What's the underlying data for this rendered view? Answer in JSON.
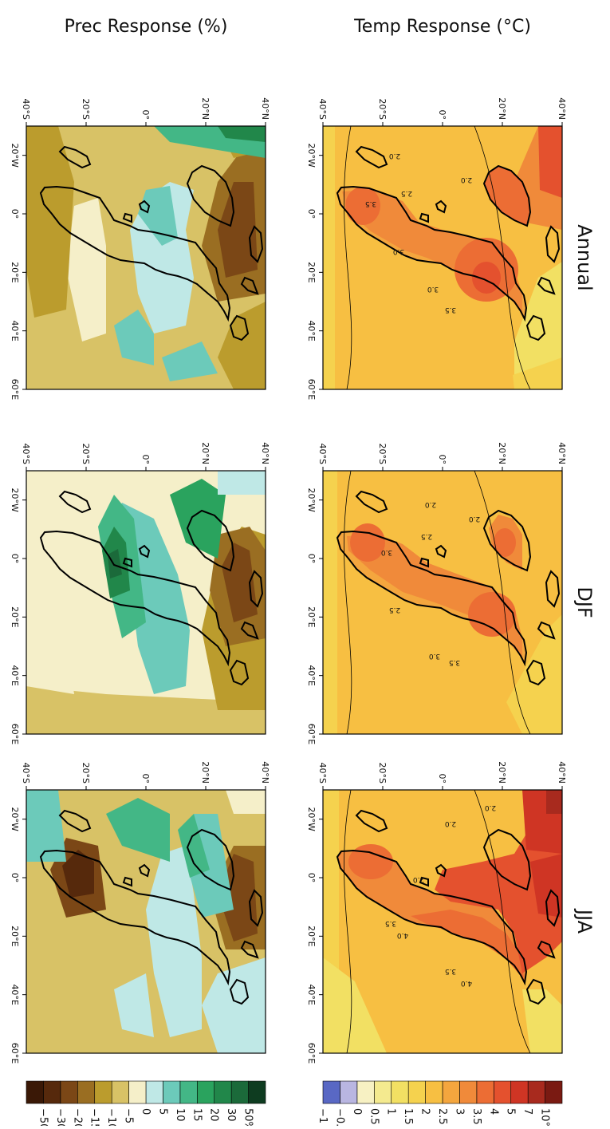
{
  "row_titles": {
    "temp": "Temp Response (°C)",
    "prec": "Prec Response (%)"
  },
  "columns": [
    "Annual",
    "DJF",
    "JJA"
  ],
  "lat_labels": [
    "40°N",
    "20°N",
    "0°",
    "20°S",
    "40°S"
  ],
  "lon_labels": [
    "20°W",
    "0°",
    "20°E",
    "40°E",
    "60°E"
  ],
  "temp_colorbar": {
    "labels": [
      "10°C",
      "7",
      "5",
      "4",
      "3.5",
      "3",
      "2.5",
      "2",
      "1.5",
      "1",
      "0.5",
      "0",
      "−0.5",
      "−1"
    ],
    "colors": [
      "#7a1a12",
      "#a82a1e",
      "#cf3524",
      "#e4512e",
      "#ec6d34",
      "#f08a3a",
      "#f4a63e",
      "#f7bf42",
      "#f5d24e",
      "#f2e063",
      "#f4ea8f",
      "#f7f1c3",
      "#b9b6e1",
      "#5968c4"
    ]
  },
  "prec_colorbar": {
    "labels": [
      "50%",
      "30",
      "20",
      "15",
      "10",
      "5",
      "0",
      "−5",
      "−10",
      "−15",
      "−20",
      "−30",
      "−50"
    ],
    "colors": [
      "#0e3c20",
      "#1b6a3a",
      "#21874a",
      "#2aa35e",
      "#43b786",
      "#6ccaba",
      "#bfe8e6",
      "#f5efc9",
      "#d8c266",
      "#bb9c2d",
      "#9a6e22",
      "#7b4716",
      "#56290c",
      "#3a1806"
    ]
  },
  "contour_labels": {
    "annual_temp": [
      "3.5",
      "3.0",
      "3.0",
      "3.5",
      "2.5",
      "2.0",
      "2.0"
    ],
    "djf_temp": [
      "3.5",
      "3.0",
      "2.5",
      "3.0",
      "2.0",
      "2.0",
      "2.5"
    ],
    "jja_temp": [
      "4.0",
      "3.5",
      "2.0",
      "2.0",
      "4.0",
      "3.5",
      "2.0"
    ]
  }
}
